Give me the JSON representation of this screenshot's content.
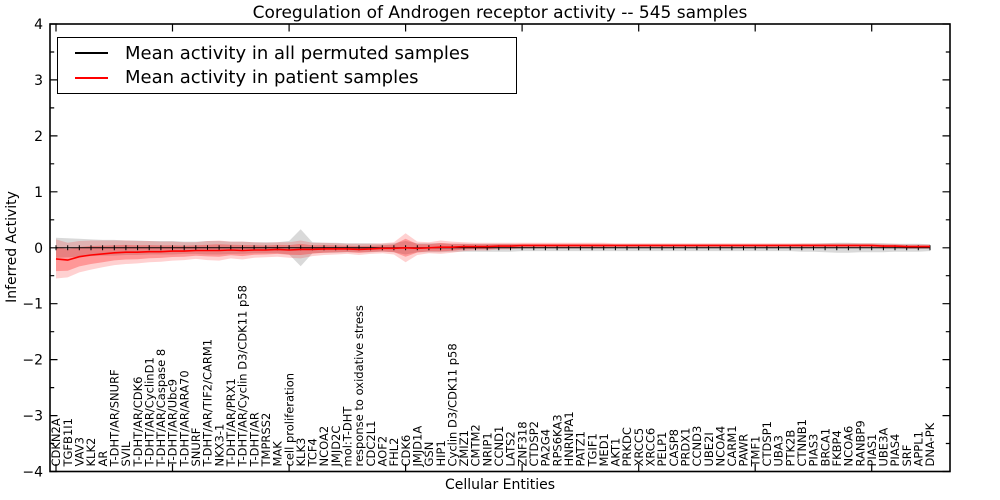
{
  "chart_data": {
    "type": "line",
    "title": "Coregulation of Androgen receptor activity -- 545 samples",
    "xlabel": "Cellular Entities",
    "ylabel": "Inferred Activity",
    "ylim": [
      -4,
      4
    ],
    "yticks": [
      4,
      3,
      2,
      1,
      0,
      -1,
      -2,
      -3,
      -4
    ],
    "ytick_labels": [
      "4",
      "3",
      "2",
      "1",
      "0",
      "−1",
      "−2",
      "−3",
      "−4"
    ],
    "grid": false,
    "legend_position": "upper left",
    "frame_color": "#000000",
    "background_color": "#ffffff",
    "categories": [
      "CDKN2A",
      "TGFB1I1",
      "VAV3",
      "KLK2",
      "AR",
      "T-DHT/AR/SNURF",
      "SVIL",
      "T-DHT/AR/CDK6",
      "T-DHT/AR/CyclinD1",
      "T-DHT/AR/Caspase 8",
      "T-DHT/AR/Ubc9",
      "T-DHT/AR/ARA70",
      "SNURF",
      "T-DHT/AR/TIF2/CARM1",
      "NKX3-1",
      "T-DHT/AR/PRX1",
      "T-DHT/AR/Cyclin D3/CDK11 p58",
      "T-DHT/AR",
      "TMPRSS2",
      "MAK",
      "cell proliferation",
      "KLK3",
      "TCF4",
      "NCOA2",
      "JMJD2C",
      "mol:T-DHT",
      "response to oxidative stress",
      "CDC2L1",
      "AOF2",
      "FHL2",
      "CDK6",
      "JMJD1A",
      "GSN",
      "HIP1",
      "Cyclin D3/CDK11 p58",
      "ZMIZ1",
      "CMTM2",
      "NRIP1",
      "CCND1",
      "LATS2",
      "ZNF318",
      "CTDSP2",
      "PA2G4",
      "RPS6KA3",
      "HNRNPA1",
      "PATZ1",
      "TGIF1",
      "MED1",
      "AKT1",
      "PRKDC",
      "XRCC5",
      "XRCC6",
      "PELP1",
      "CASP8",
      "PRDX1",
      "CCND3",
      "UBE2I",
      "NCOA4",
      "CARM1",
      "PAWR",
      "TMF1",
      "CTDSP1",
      "UBA3",
      "PTK2B",
      "CTNNB1",
      "PIAS3",
      "BRCA1",
      "FKBP4",
      "NCOA6",
      "RANBP9",
      "PIAS1",
      "UBE3A",
      "PIAS4",
      "SRF",
      "APPL1",
      "DNA-PK"
    ],
    "series": [
      {
        "name": "Mean activity in all permuted samples",
        "color": "#000000",
        "values": [
          0,
          0,
          0,
          0,
          0,
          0,
          0,
          0,
          0,
          0,
          0,
          0,
          0,
          0,
          0,
          0,
          0,
          0,
          0,
          0,
          0,
          0,
          0,
          0,
          0,
          0,
          0,
          0,
          0,
          0,
          0,
          0,
          0,
          0,
          0,
          0,
          0,
          0,
          0,
          0,
          0,
          0,
          0,
          0,
          0,
          0,
          0,
          0,
          0,
          0,
          0,
          0,
          0,
          0,
          0,
          0,
          0,
          0,
          0,
          0,
          0,
          0,
          0,
          0,
          0,
          0,
          0,
          0,
          0,
          0,
          0,
          0,
          0,
          0,
          0,
          0
        ],
        "band_halfwidth": [
          0.18,
          0.17,
          0.16,
          0.15,
          0.14,
          0.14,
          0.13,
          0.13,
          0.12,
          0.12,
          0.12,
          0.11,
          0.11,
          0.12,
          0.12,
          0.11,
          0.11,
          0.1,
          0.1,
          0.1,
          0.12,
          0.33,
          0.1,
          0.09,
          0.09,
          0.08,
          0.08,
          0.08,
          0.07,
          0.08,
          0.12,
          0.08,
          0.08,
          0.08,
          0.07,
          0.07,
          0.07,
          0.07,
          0.07,
          0.07,
          0.06,
          0.06,
          0.06,
          0.06,
          0.06,
          0.06,
          0.06,
          0.06,
          0.06,
          0.06,
          0.06,
          0.06,
          0.06,
          0.06,
          0.06,
          0.06,
          0.06,
          0.06,
          0.06,
          0.06,
          0.06,
          0.06,
          0.06,
          0.06,
          0.07,
          0.07,
          0.08,
          0.09,
          0.09,
          0.08,
          0.08,
          0.08,
          0.07,
          0.07,
          0.07,
          0.06
        ]
      },
      {
        "name": "Mean activity in patient samples",
        "color": "#ff0000",
        "values": [
          -0.2,
          -0.22,
          -0.16,
          -0.13,
          -0.11,
          -0.09,
          -0.08,
          -0.08,
          -0.07,
          -0.07,
          -0.06,
          -0.06,
          -0.05,
          -0.05,
          -0.05,
          -0.04,
          -0.05,
          -0.04,
          -0.04,
          -0.03,
          -0.04,
          -0.03,
          -0.03,
          -0.02,
          -0.02,
          -0.02,
          -0.03,
          -0.02,
          -0.01,
          -0.01,
          0.0,
          -0.01,
          0.0,
          0.01,
          0.01,
          0.02,
          0.02,
          0.02,
          0.03,
          0.03,
          0.04,
          0.04,
          0.04,
          0.04,
          0.04,
          0.04,
          0.04,
          0.04,
          0.04,
          0.04,
          0.04,
          0.04,
          0.04,
          0.04,
          0.04,
          0.04,
          0.04,
          0.04,
          0.04,
          0.04,
          0.04,
          0.04,
          0.04,
          0.04,
          0.04,
          0.04,
          0.04,
          0.04,
          0.04,
          0.04,
          0.04,
          0.03,
          0.03,
          0.02,
          0.02,
          0.02
        ],
        "band_halfwidth": [
          0.35,
          0.31,
          0.28,
          0.26,
          0.24,
          0.22,
          0.21,
          0.2,
          0.19,
          0.18,
          0.17,
          0.16,
          0.15,
          0.17,
          0.18,
          0.15,
          0.16,
          0.14,
          0.13,
          0.13,
          0.14,
          0.16,
          0.12,
          0.11,
          0.1,
          0.09,
          0.1,
          0.09,
          0.09,
          0.11,
          0.26,
          0.12,
          0.1,
          0.12,
          0.1,
          0.08,
          0.07,
          0.07,
          0.06,
          0.06,
          0.05,
          0.05,
          0.05,
          0.05,
          0.05,
          0.05,
          0.05,
          0.05,
          0.04,
          0.04,
          0.04,
          0.04,
          0.04,
          0.04,
          0.04,
          0.04,
          0.04,
          0.04,
          0.04,
          0.04,
          0.04,
          0.04,
          0.04,
          0.04,
          0.04,
          0.04,
          0.04,
          0.04,
          0.04,
          0.04,
          0.04,
          0.04,
          0.04,
          0.04,
          0.04,
          0.04
        ]
      }
    ]
  }
}
